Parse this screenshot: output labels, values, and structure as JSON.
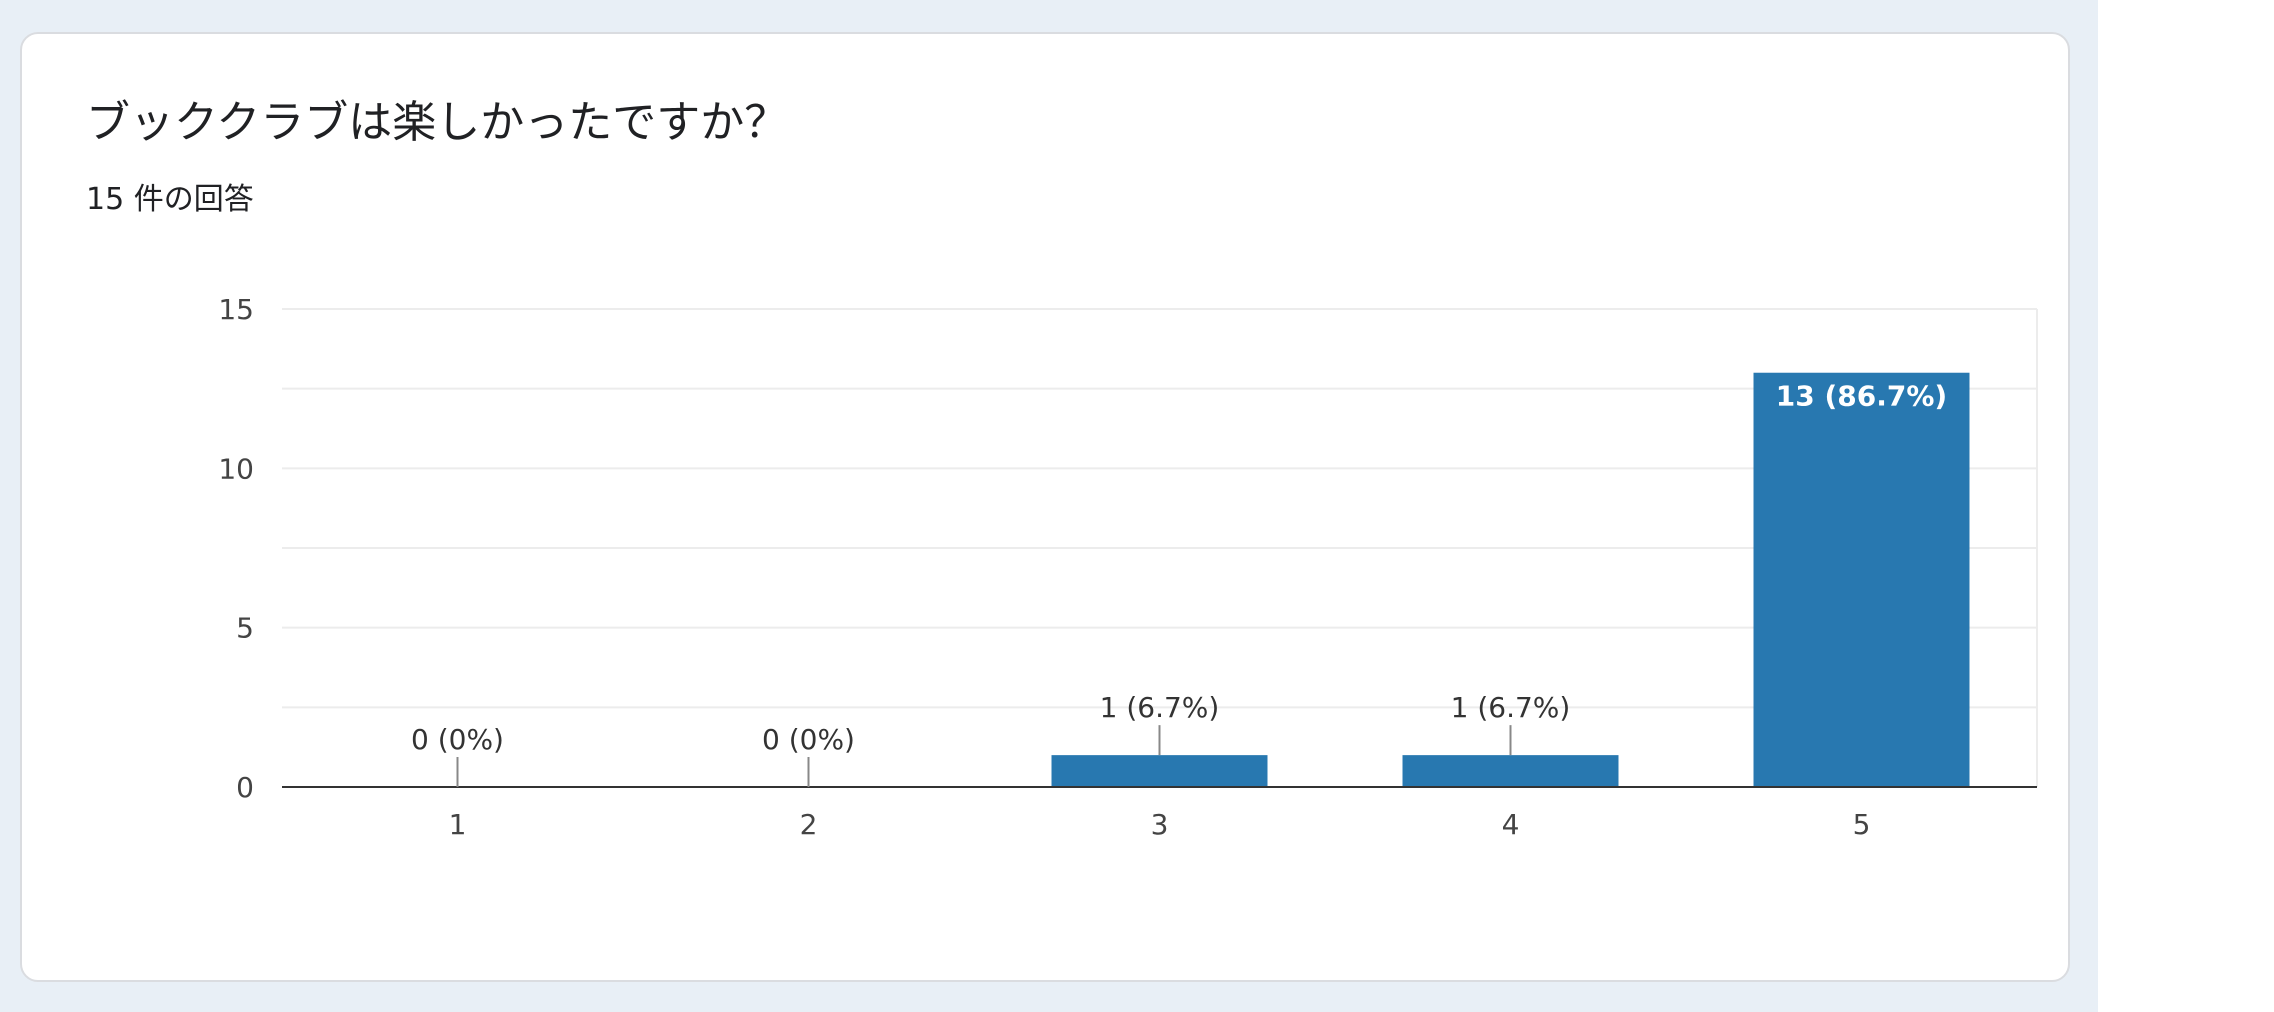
{
  "card": {
    "title": "ブッククラブは楽しかったですか？",
    "response_count": "15 件の回答"
  },
  "chart_data": {
    "type": "bar",
    "categories": [
      "1",
      "2",
      "3",
      "4",
      "5"
    ],
    "values": [
      0,
      0,
      1,
      1,
      13
    ],
    "data_labels": [
      "0 (0%)",
      "0 (0%)",
      "1 (6.7%)",
      "1 (6.7%)",
      "13 (86.7%)"
    ],
    "yticks": [
      0,
      5,
      10,
      15
    ],
    "ylim": [
      0,
      15
    ],
    "grid": true,
    "bar_color": "#2878b0",
    "title": "ブッククラブは楽しかったですか？",
    "xlabel": "",
    "ylabel": ""
  }
}
